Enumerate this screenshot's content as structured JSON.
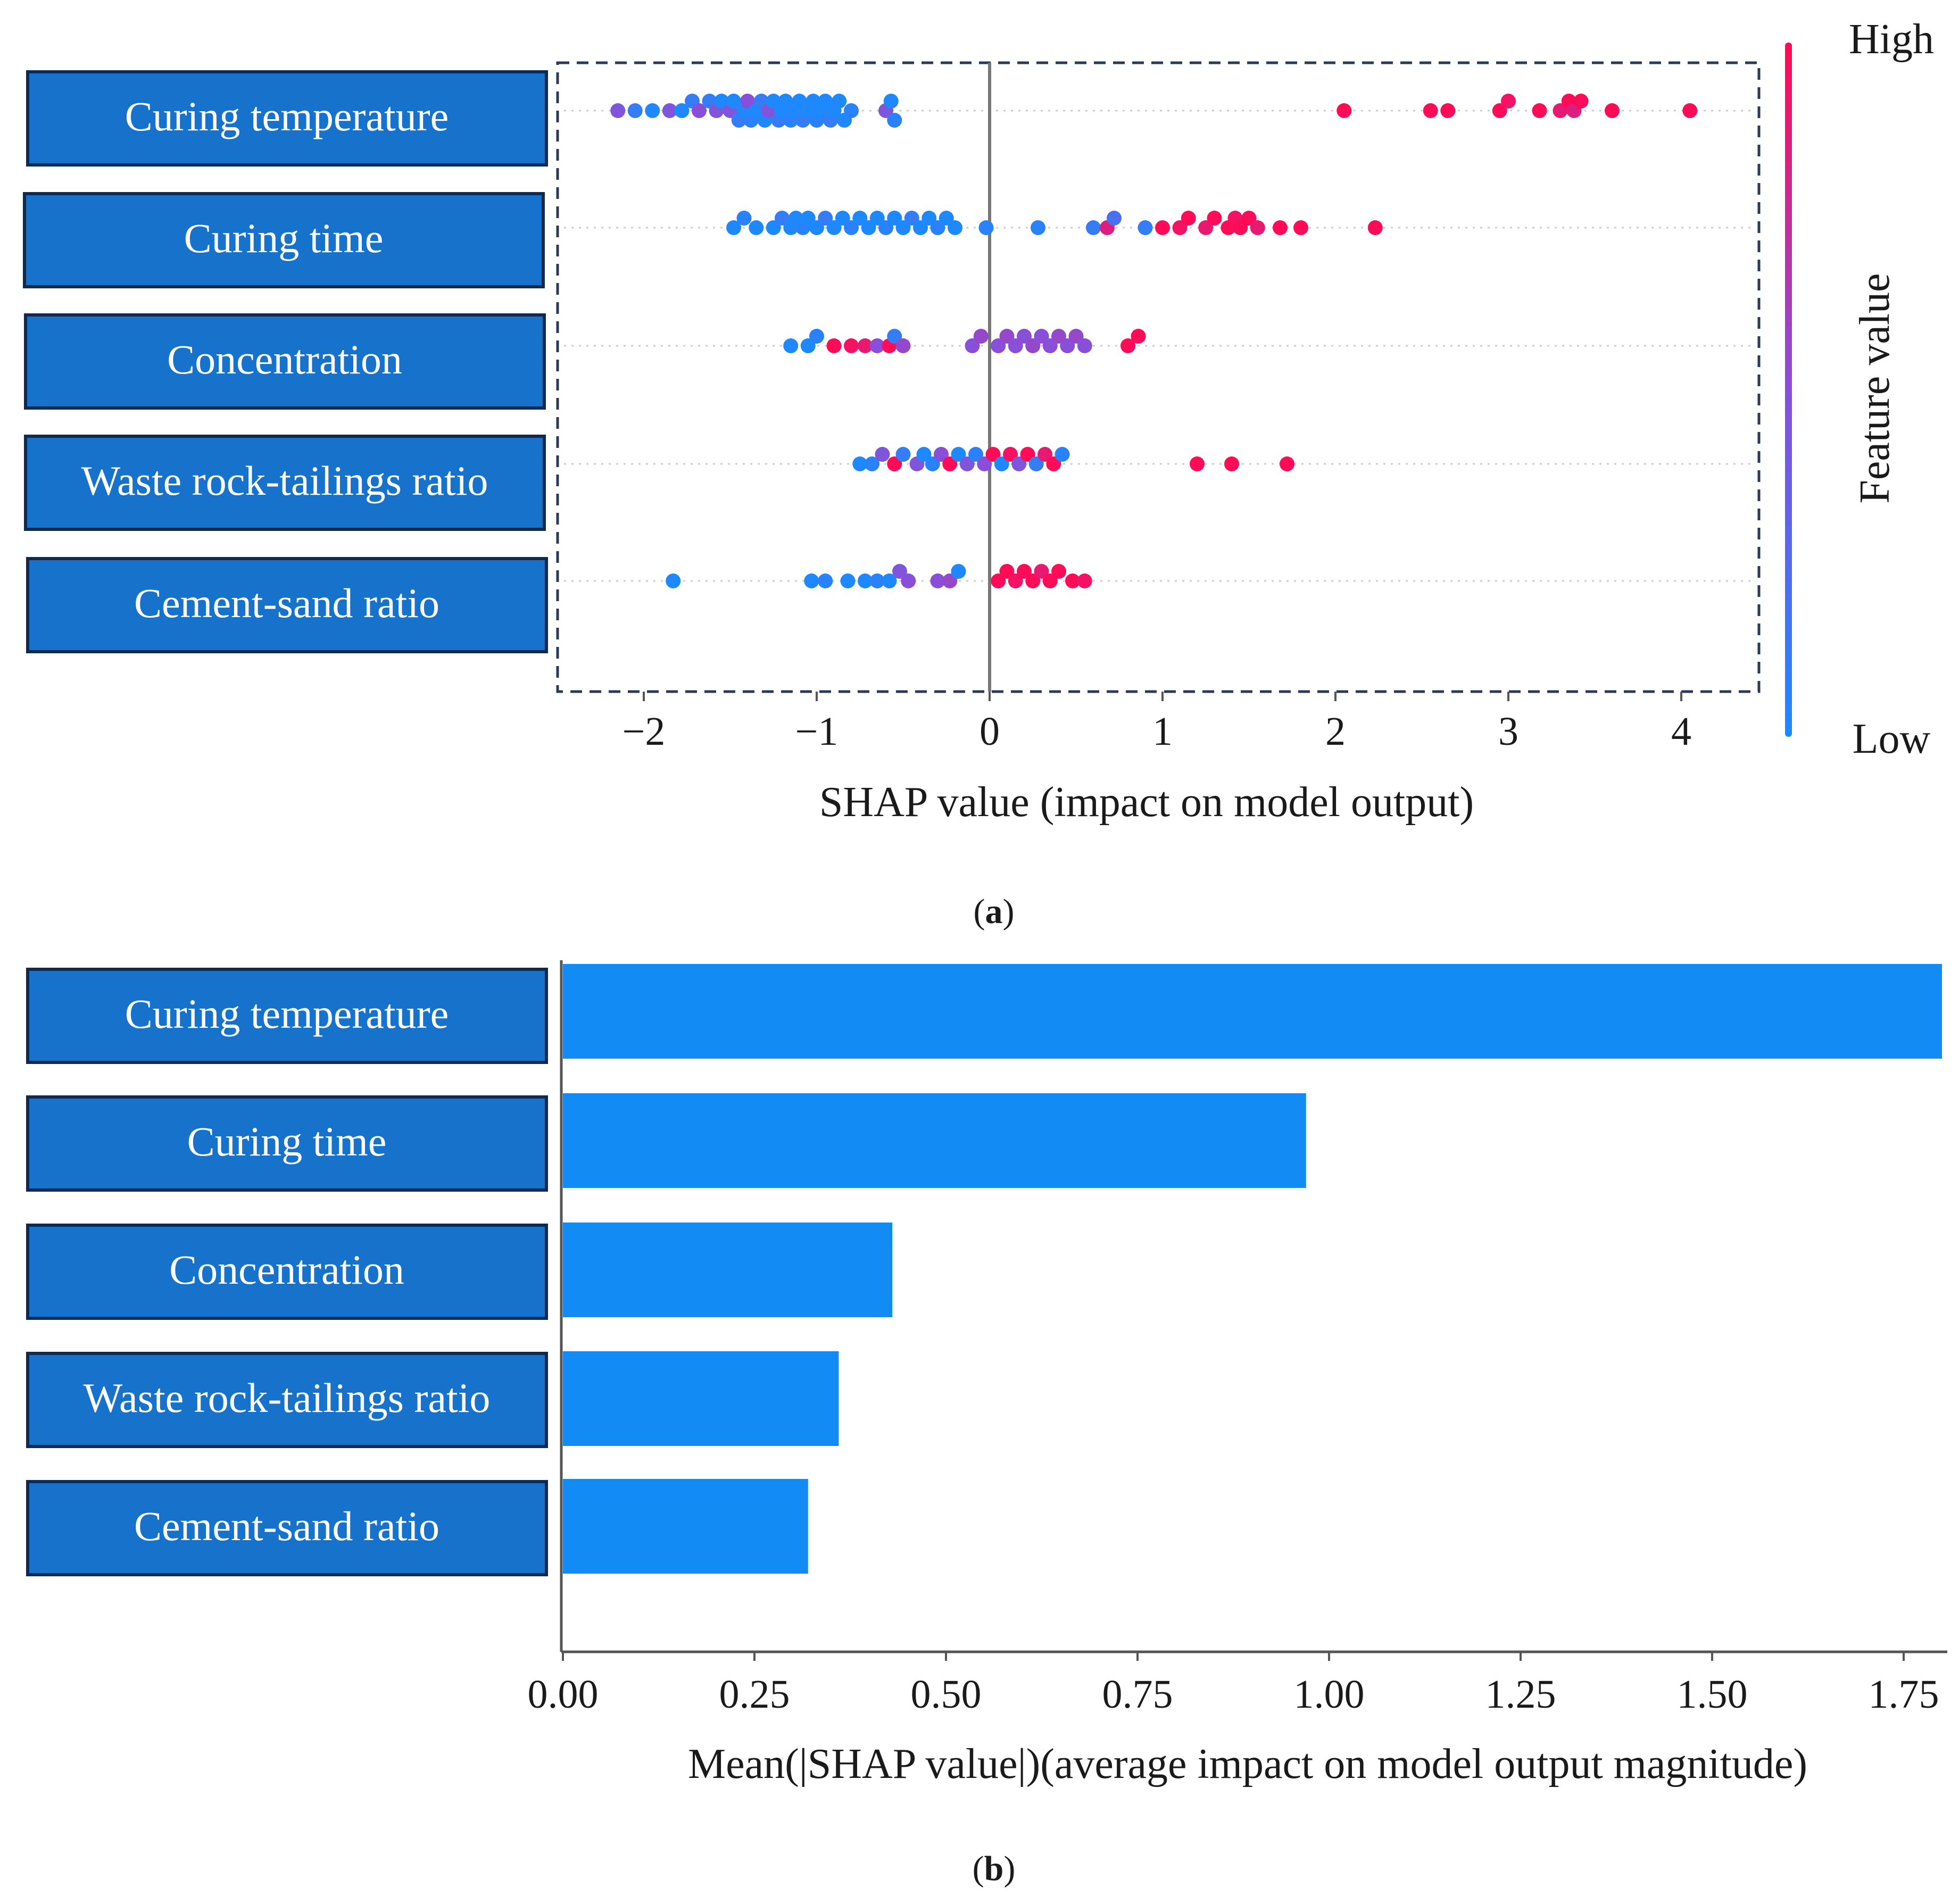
{
  "colors": {
    "box_fill": "#1772cc",
    "box_border": "#0d2a52",
    "bar_fill": "#138bf5",
    "low": "#1e88ff",
    "mid": "#8a4fd8",
    "high": "#ff0b57",
    "zero_line": "#777777",
    "grid_dash": "#cccccc"
  },
  "panel_labels": {
    "a": "a",
    "b": "b"
  },
  "chart_data": [
    {
      "id": "a",
      "type": "scatter",
      "subtype": "shap_beeswarm",
      "features": [
        "Curing temperature",
        "Curing time",
        "Concentration",
        "Waste rock-tailings ratio",
        "Cement-sand ratio"
      ],
      "xlabel": "SHAP value (impact on model output)",
      "xlim": [
        -2.5,
        4.4
      ],
      "xticks": [
        -2,
        -1,
        0,
        1,
        2,
        3,
        4
      ],
      "xtick_labels": [
        "−2",
        "−1",
        "0",
        "1",
        "2",
        "3",
        "4"
      ],
      "colorbar": {
        "title": "Feature value",
        "high_label": "High",
        "low_label": "Low"
      },
      "series": [
        {
          "name": "Curing temperature",
          "points": [
            {
              "x": -2.15,
              "c": 0.45
            },
            {
              "x": -2.05,
              "c": 0.1
            },
            {
              "x": -1.95,
              "c": 0.0
            },
            {
              "x": -1.85,
              "c": 0.45
            },
            {
              "x": -1.78,
              "c": 0.0
            },
            {
              "x": -1.72,
              "c": 0.1
            },
            {
              "x": -1.68,
              "c": 0.5
            },
            {
              "x": -1.62,
              "c": 0.1
            },
            {
              "x": -1.58,
              "c": 0.45
            },
            {
              "x": -1.55,
              "c": 0.0
            },
            {
              "x": -1.5,
              "c": 0.45
            },
            {
              "x": -1.48,
              "c": 0.0
            },
            {
              "x": -1.45,
              "c": 0.1
            },
            {
              "x": -1.42,
              "c": 0.0
            },
            {
              "x": -1.4,
              "c": 0.5
            },
            {
              "x": -1.38,
              "c": 0.05
            },
            {
              "x": -1.35,
              "c": 0.0
            },
            {
              "x": -1.32,
              "c": 0.1
            },
            {
              "x": -1.3,
              "c": 0.0
            },
            {
              "x": -1.28,
              "c": 0.45
            },
            {
              "x": -1.25,
              "c": 0.0
            },
            {
              "x": -1.22,
              "c": 0.1
            },
            {
              "x": -1.2,
              "c": 0.0
            },
            {
              "x": -1.18,
              "c": 0.0
            },
            {
              "x": -1.15,
              "c": 0.05
            },
            {
              "x": -1.12,
              "c": 0.0
            },
            {
              "x": -1.1,
              "c": 0.0
            },
            {
              "x": -1.08,
              "c": 0.1
            },
            {
              "x": -1.05,
              "c": 0.0
            },
            {
              "x": -1.02,
              "c": 0.0
            },
            {
              "x": -1.0,
              "c": 0.05
            },
            {
              "x": -0.98,
              "c": 0.0
            },
            {
              "x": -0.95,
              "c": 0.0
            },
            {
              "x": -0.92,
              "c": 0.1
            },
            {
              "x": -0.9,
              "c": 0.0
            },
            {
              "x": -0.87,
              "c": 0.0
            },
            {
              "x": -0.84,
              "c": 0.0
            },
            {
              "x": -0.8,
              "c": 0.05
            },
            {
              "x": -0.6,
              "c": 0.45
            },
            {
              "x": -0.57,
              "c": 0.0
            },
            {
              "x": -0.55,
              "c": 0.05
            },
            {
              "x": 2.05,
              "c": 1.0
            },
            {
              "x": 2.55,
              "c": 1.0
            },
            {
              "x": 2.65,
              "c": 1.0
            },
            {
              "x": 2.95,
              "c": 1.0
            },
            {
              "x": 3.0,
              "c": 0.95
            },
            {
              "x": 3.18,
              "c": 1.0
            },
            {
              "x": 3.3,
              "c": 0.9
            },
            {
              "x": 3.35,
              "c": 1.0
            },
            {
              "x": 3.38,
              "c": 0.85
            },
            {
              "x": 3.42,
              "c": 1.0
            },
            {
              "x": 3.6,
              "c": 1.0
            },
            {
              "x": 4.05,
              "c": 1.0
            }
          ]
        },
        {
          "name": "Curing time",
          "points": [
            {
              "x": -1.48,
              "c": 0.0
            },
            {
              "x": -1.42,
              "c": 0.05
            },
            {
              "x": -1.35,
              "c": 0.0
            },
            {
              "x": -1.25,
              "c": 0.0
            },
            {
              "x": -1.2,
              "c": 0.1
            },
            {
              "x": -1.15,
              "c": 0.0
            },
            {
              "x": -1.12,
              "c": 0.0
            },
            {
              "x": -1.08,
              "c": 0.05
            },
            {
              "x": -1.05,
              "c": 0.0
            },
            {
              "x": -1.0,
              "c": 0.0
            },
            {
              "x": -0.95,
              "c": 0.1
            },
            {
              "x": -0.9,
              "c": 0.0
            },
            {
              "x": -0.85,
              "c": 0.0
            },
            {
              "x": -0.8,
              "c": 0.05
            },
            {
              "x": -0.75,
              "c": 0.0
            },
            {
              "x": -0.7,
              "c": 0.0
            },
            {
              "x": -0.65,
              "c": 0.0
            },
            {
              "x": -0.6,
              "c": 0.05
            },
            {
              "x": -0.55,
              "c": 0.0
            },
            {
              "x": -0.5,
              "c": 0.0
            },
            {
              "x": -0.45,
              "c": 0.1
            },
            {
              "x": -0.4,
              "c": 0.0
            },
            {
              "x": -0.35,
              "c": 0.0
            },
            {
              "x": -0.3,
              "c": 0.05
            },
            {
              "x": -0.25,
              "c": 0.0
            },
            {
              "x": -0.2,
              "c": 0.0
            },
            {
              "x": -0.02,
              "c": 0.05
            },
            {
              "x": 0.28,
              "c": 0.05
            },
            {
              "x": 0.6,
              "c": 0.1
            },
            {
              "x": 0.68,
              "c": 0.85
            },
            {
              "x": 0.72,
              "c": 0.2
            },
            {
              "x": 0.9,
              "c": 0.1
            },
            {
              "x": 1.0,
              "c": 1.0
            },
            {
              "x": 1.1,
              "c": 0.95
            },
            {
              "x": 1.15,
              "c": 1.0
            },
            {
              "x": 1.25,
              "c": 0.9
            },
            {
              "x": 1.3,
              "c": 1.0
            },
            {
              "x": 1.38,
              "c": 1.0
            },
            {
              "x": 1.42,
              "c": 0.95
            },
            {
              "x": 1.45,
              "c": 1.0
            },
            {
              "x": 1.5,
              "c": 1.0
            },
            {
              "x": 1.55,
              "c": 0.9
            },
            {
              "x": 1.68,
              "c": 1.0
            },
            {
              "x": 1.8,
              "c": 1.0
            },
            {
              "x": 2.23,
              "c": 1.0
            }
          ]
        },
        {
          "name": "Concentration",
          "points": [
            {
              "x": -1.15,
              "c": 0.0
            },
            {
              "x": -1.05,
              "c": 0.0
            },
            {
              "x": -1.0,
              "c": 0.05
            },
            {
              "x": -0.9,
              "c": 1.0
            },
            {
              "x": -0.8,
              "c": 0.95
            },
            {
              "x": -0.72,
              "c": 0.9
            },
            {
              "x": -0.65,
              "c": 0.5
            },
            {
              "x": -0.58,
              "c": 1.0
            },
            {
              "x": -0.55,
              "c": 0.1
            },
            {
              "x": -0.5,
              "c": 0.55
            },
            {
              "x": -0.1,
              "c": 0.5
            },
            {
              "x": -0.05,
              "c": 0.55
            },
            {
              "x": 0.05,
              "c": 0.5
            },
            {
              "x": 0.1,
              "c": 0.55
            },
            {
              "x": 0.15,
              "c": 0.5
            },
            {
              "x": 0.2,
              "c": 0.5
            },
            {
              "x": 0.25,
              "c": 0.55
            },
            {
              "x": 0.3,
              "c": 0.5
            },
            {
              "x": 0.35,
              "c": 0.5
            },
            {
              "x": 0.4,
              "c": 0.55
            },
            {
              "x": 0.45,
              "c": 0.5
            },
            {
              "x": 0.5,
              "c": 0.55
            },
            {
              "x": 0.55,
              "c": 0.5
            },
            {
              "x": 0.8,
              "c": 1.0
            },
            {
              "x": 0.86,
              "c": 1.0
            }
          ]
        },
        {
          "name": "Waste rock-tailings ratio",
          "points": [
            {
              "x": -0.75,
              "c": 0.0
            },
            {
              "x": -0.68,
              "c": 0.05
            },
            {
              "x": -0.62,
              "c": 0.45
            },
            {
              "x": -0.55,
              "c": 1.0
            },
            {
              "x": -0.5,
              "c": 0.1
            },
            {
              "x": -0.42,
              "c": 0.45
            },
            {
              "x": -0.38,
              "c": 0.0
            },
            {
              "x": -0.33,
              "c": 0.05
            },
            {
              "x": -0.28,
              "c": 0.5
            },
            {
              "x": -0.23,
              "c": 1.0
            },
            {
              "x": -0.18,
              "c": 0.0
            },
            {
              "x": -0.13,
              "c": 0.45
            },
            {
              "x": -0.08,
              "c": 0.05
            },
            {
              "x": -0.03,
              "c": 0.5
            },
            {
              "x": 0.02,
              "c": 1.0
            },
            {
              "x": 0.07,
              "c": 0.0
            },
            {
              "x": 0.12,
              "c": 0.95
            },
            {
              "x": 0.17,
              "c": 0.45
            },
            {
              "x": 0.22,
              "c": 1.0
            },
            {
              "x": 0.27,
              "c": 0.1
            },
            {
              "x": 0.32,
              "c": 0.9
            },
            {
              "x": 0.37,
              "c": 1.0
            },
            {
              "x": 0.42,
              "c": 0.05
            },
            {
              "x": 1.2,
              "c": 1.0
            },
            {
              "x": 1.4,
              "c": 1.0
            },
            {
              "x": 1.72,
              "c": 1.0
            }
          ]
        },
        {
          "name": "Cement-sand ratio",
          "points": [
            {
              "x": -1.83,
              "c": 0.0
            },
            {
              "x": -1.03,
              "c": 0.0
            },
            {
              "x": -0.95,
              "c": 0.05
            },
            {
              "x": -0.82,
              "c": 0.0
            },
            {
              "x": -0.72,
              "c": 0.0
            },
            {
              "x": -0.65,
              "c": 0.05
            },
            {
              "x": -0.58,
              "c": 0.0
            },
            {
              "x": -0.52,
              "c": 0.45
            },
            {
              "x": -0.47,
              "c": 0.5
            },
            {
              "x": -0.3,
              "c": 0.5
            },
            {
              "x": -0.23,
              "c": 0.55
            },
            {
              "x": -0.18,
              "c": 0.0
            },
            {
              "x": 0.05,
              "c": 1.0
            },
            {
              "x": 0.1,
              "c": 1.0
            },
            {
              "x": 0.15,
              "c": 0.95
            },
            {
              "x": 0.2,
              "c": 1.0
            },
            {
              "x": 0.25,
              "c": 1.0
            },
            {
              "x": 0.3,
              "c": 0.9
            },
            {
              "x": 0.35,
              "c": 1.0
            },
            {
              "x": 0.4,
              "c": 1.0
            },
            {
              "x": 0.48,
              "c": 1.0
            },
            {
              "x": 0.55,
              "c": 0.95
            }
          ]
        }
      ]
    },
    {
      "id": "b",
      "type": "bar",
      "orientation": "horizontal",
      "categories": [
        "Curing temperature",
        "Curing time",
        "Concentration",
        "Waste rock-tailings ratio",
        "Cement-sand ratio"
      ],
      "values": [
        1.8,
        0.97,
        0.43,
        0.36,
        0.32
      ],
      "xlabel": "Mean(|SHAP value|)(average impact on model output magnitude)",
      "xlim": [
        0,
        1.81
      ],
      "xticks": [
        0,
        0.25,
        0.5,
        0.75,
        1.0,
        1.25,
        1.5,
        1.75
      ],
      "xtick_labels": [
        "0.00",
        "0.25",
        "0.50",
        "0.75",
        "1.00",
        "1.25",
        "1.50",
        "1.75"
      ]
    }
  ]
}
